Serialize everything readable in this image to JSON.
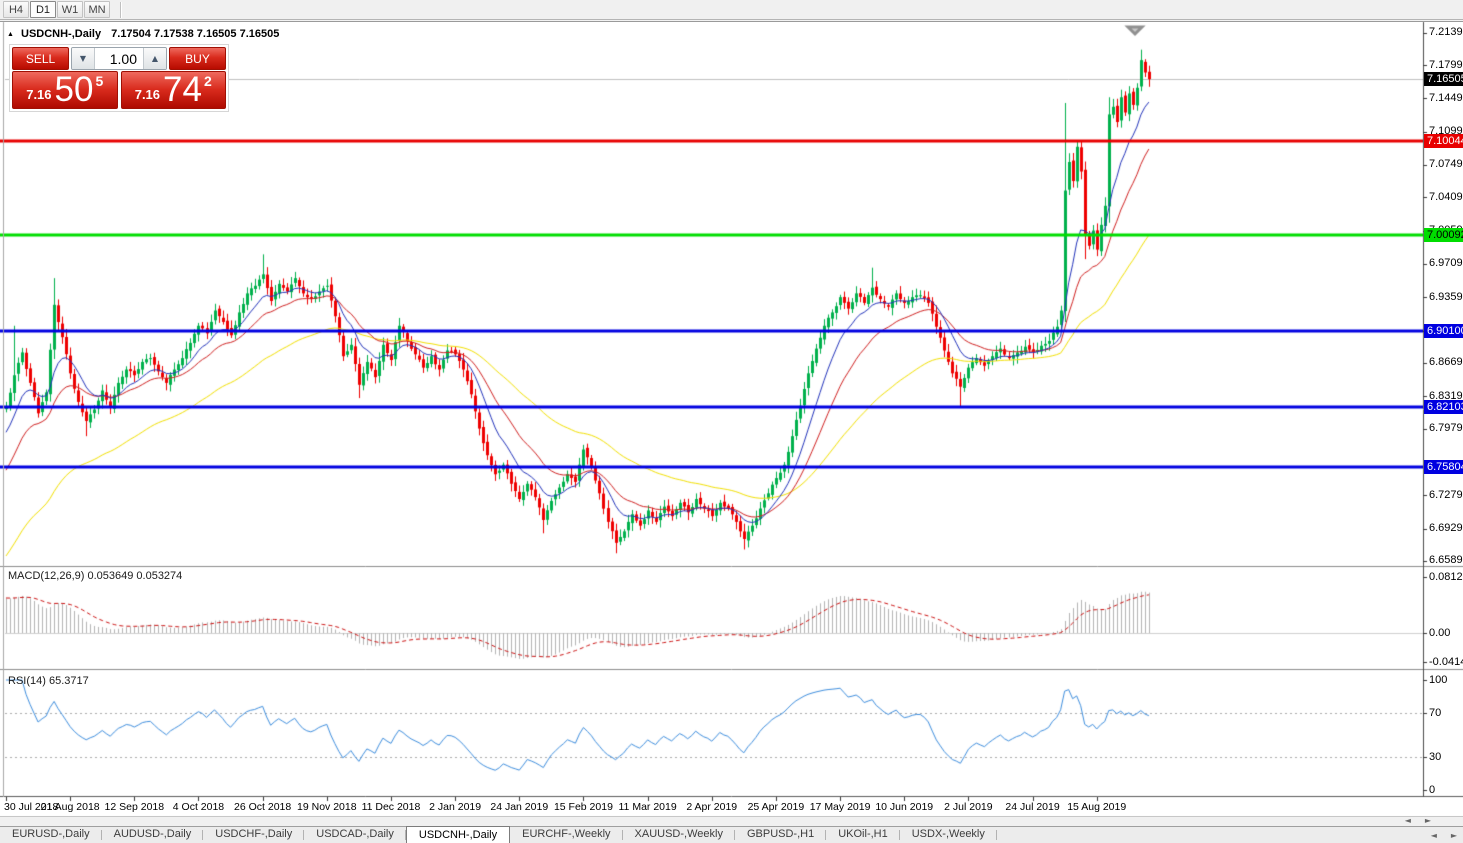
{
  "toolbar": {
    "timeframes": [
      {
        "label": "H4",
        "active": false
      },
      {
        "label": "D1",
        "active": true
      },
      {
        "label": "W1",
        "active": false
      },
      {
        "label": "MN",
        "active": false
      }
    ]
  },
  "header": {
    "collapse_icon": "▲",
    "symbol": "USDCNH-,Daily",
    "ohlc": "7.17504 7.17538 7.16505 7.16505"
  },
  "trade_widget": {
    "sell_label": "SELL",
    "buy_label": "BUY",
    "volume": "1.00",
    "spinner_down_icon": "▼",
    "spinner_up_icon": "▲",
    "sell_quote": {
      "prefix": "7.16",
      "big": "50",
      "sup": "5"
    },
    "buy_quote": {
      "prefix": "7.16",
      "big": "74",
      "sup": "2"
    }
  },
  "indicator_labels": {
    "macd_title": "MACD(12,26,9) 0.053649 0.053274",
    "rsi_title": "RSI(14) 65.3717"
  },
  "scrollbar": {
    "left_arrow": "◄",
    "right_arrow": "►"
  },
  "tabs": [
    {
      "label": "EURUSD-,Daily",
      "active": false
    },
    {
      "label": "AUDUSD-,Daily",
      "active": false
    },
    {
      "label": "USDCHF-,Daily",
      "active": false
    },
    {
      "label": "USDCAD-,Daily",
      "active": false
    },
    {
      "label": "USDCNH-,Daily",
      "active": true
    },
    {
      "label": "EURCHF-,Weekly",
      "active": false
    },
    {
      "label": "XAUUSD-,Weekly",
      "active": false
    },
    {
      "label": "GBPUSD-,H1",
      "active": false
    },
    {
      "label": "UKOil-,H1",
      "active": false
    },
    {
      "label": "USDX-,Weekly",
      "active": false
    }
  ],
  "colors": {
    "candle_up": "#00b14c",
    "candle_down": "#ee0000",
    "ma_fast": "#2233bb",
    "ma_mid": "#d02020",
    "ma_slow": "#f2e000",
    "line_red": "#e80000",
    "line_green": "#00dd00",
    "line_blue": "#0000e0",
    "current_price_line": "#c0c0c0",
    "current_price_box": "#000000",
    "macd_histogram": "#b4b4b4",
    "macd_signal": "#cc1111",
    "rsi_line": "#3e8ede",
    "dashed_level": "#aaaaaa"
  },
  "chart_data": {
    "type": "candlestick",
    "symbol": "USDCNH-",
    "timeframe": "Daily",
    "ohlc_display": {
      "open": "7.17504",
      "high": "7.17538",
      "low": "7.16505",
      "close": "7.16505"
    },
    "visible_bars": 286,
    "warmup_bars": 40,
    "close_waypoints": [
      [
        -40,
        6.5
      ],
      [
        -32,
        6.568
      ],
      [
        -24,
        6.638
      ],
      [
        -16,
        6.712
      ],
      [
        -8,
        6.778
      ],
      [
        -4,
        6.8
      ],
      [
        0,
        6.82
      ],
      [
        2,
        6.854
      ],
      [
        4,
        6.878
      ],
      [
        6,
        6.846
      ],
      [
        8,
        6.814
      ],
      [
        10,
        6.836
      ],
      [
        12,
        6.928
      ],
      [
        14,
        6.894
      ],
      [
        16,
        6.856
      ],
      [
        18,
        6.826
      ],
      [
        20,
        6.806
      ],
      [
        22,
        6.818
      ],
      [
        24,
        6.838
      ],
      [
        26,
        6.82
      ],
      [
        28,
        6.846
      ],
      [
        30,
        6.86
      ],
      [
        32,
        6.854
      ],
      [
        34,
        6.868
      ],
      [
        36,
        6.872
      ],
      [
        38,
        6.858
      ],
      [
        40,
        6.846
      ],
      [
        42,
        6.86
      ],
      [
        44,
        6.872
      ],
      [
        46,
        6.888
      ],
      [
        48,
        6.906
      ],
      [
        50,
        6.898
      ],
      [
        52,
        6.922
      ],
      [
        54,
        6.91
      ],
      [
        56,
        6.896
      ],
      [
        58,
        6.92
      ],
      [
        60,
        6.94
      ],
      [
        62,
        6.948
      ],
      [
        64,
        6.96
      ],
      [
        66,
        6.932
      ],
      [
        68,
        6.95
      ],
      [
        70,
        6.942
      ],
      [
        72,
        6.956
      ],
      [
        74,
        6.94
      ],
      [
        76,
        6.934
      ],
      [
        78,
        6.942
      ],
      [
        80,
        6.948
      ],
      [
        82,
        6.916
      ],
      [
        84,
        6.874
      ],
      [
        86,
        6.886
      ],
      [
        88,
        6.844
      ],
      [
        90,
        6.868
      ],
      [
        92,
        6.852
      ],
      [
        94,
        6.886
      ],
      [
        96,
        6.87
      ],
      [
        98,
        6.906
      ],
      [
        100,
        6.89
      ],
      [
        102,
        6.876
      ],
      [
        104,
        6.862
      ],
      [
        106,
        6.874
      ],
      [
        108,
        6.86
      ],
      [
        110,
        6.88
      ],
      [
        112,
        6.876
      ],
      [
        114,
        6.86
      ],
      [
        116,
        6.834
      ],
      [
        118,
        6.798
      ],
      [
        120,
        6.77
      ],
      [
        122,
        6.75
      ],
      [
        124,
        6.76
      ],
      [
        126,
        6.74
      ],
      [
        128,
        6.724
      ],
      [
        130,
        6.74
      ],
      [
        132,
        6.726
      ],
      [
        134,
        6.702
      ],
      [
        136,
        6.722
      ],
      [
        138,
        6.736
      ],
      [
        140,
        6.75
      ],
      [
        142,
        6.742
      ],
      [
        144,
        6.776
      ],
      [
        146,
        6.758
      ],
      [
        148,
        6.73
      ],
      [
        150,
        6.7
      ],
      [
        152,
        6.678
      ],
      [
        154,
        6.69
      ],
      [
        156,
        6.708
      ],
      [
        158,
        6.696
      ],
      [
        160,
        6.712
      ],
      [
        162,
        6.7
      ],
      [
        164,
        6.716
      ],
      [
        166,
        6.706
      ],
      [
        168,
        6.72
      ],
      [
        170,
        6.71
      ],
      [
        172,
        6.724
      ],
      [
        174,
        6.714
      ],
      [
        176,
        6.706
      ],
      [
        178,
        6.72
      ],
      [
        180,
        6.714
      ],
      [
        182,
        6.7
      ],
      [
        184,
        6.682
      ],
      [
        186,
        6.696
      ],
      [
        188,
        6.714
      ],
      [
        190,
        6.73
      ],
      [
        192,
        6.746
      ],
      [
        194,
        6.76
      ],
      [
        196,
        6.79
      ],
      [
        198,
        6.822
      ],
      [
        200,
        6.856
      ],
      [
        202,
        6.882
      ],
      [
        204,
        6.906
      ],
      [
        206,
        6.92
      ],
      [
        208,
        6.936
      ],
      [
        210,
        6.924
      ],
      [
        212,
        6.94
      ],
      [
        214,
        6.93
      ],
      [
        216,
        6.946
      ],
      [
        218,
        6.934
      ],
      [
        220,
        6.926
      ],
      [
        222,
        6.94
      ],
      [
        224,
        6.93
      ],
      [
        226,
        6.936
      ],
      [
        228,
        6.938
      ],
      [
        230,
        6.93
      ],
      [
        232,
        6.905
      ],
      [
        234,
        6.88
      ],
      [
        236,
        6.856
      ],
      [
        238,
        6.842
      ],
      [
        240,
        6.862
      ],
      [
        242,
        6.872
      ],
      [
        244,
        6.864
      ],
      [
        246,
        6.874
      ],
      [
        248,
        6.882
      ],
      [
        250,
        6.872
      ],
      [
        252,
        6.878
      ],
      [
        254,
        6.884
      ],
      [
        256,
        6.878
      ],
      [
        258,
        6.885
      ],
      [
        260,
        6.89
      ],
      [
        262,
        6.905
      ],
      [
        263,
        6.922
      ],
      [
        264,
        7.048
      ],
      [
        265,
        7.078
      ],
      [
        266,
        7.058
      ],
      [
        267,
        7.094
      ],
      [
        268,
        7.068
      ],
      [
        269,
        7.002
      ],
      [
        270,
        6.99
      ],
      [
        271,
        7.006
      ],
      [
        272,
        6.986
      ],
      [
        273,
        7.012
      ],
      [
        274,
        7.032
      ],
      [
        275,
        7.128
      ],
      [
        276,
        7.136
      ],
      [
        277,
        7.12
      ],
      [
        278,
        7.146
      ],
      [
        279,
        7.13
      ],
      [
        280,
        7.15
      ],
      [
        281,
        7.138
      ],
      [
        282,
        7.156
      ],
      [
        283,
        7.185
      ],
      [
        284,
        7.172
      ],
      [
        285,
        7.16505
      ]
    ],
    "wick_overrides": [
      {
        "bar": 2,
        "high": 6.906
      },
      {
        "bar": 12,
        "high": 6.956
      },
      {
        "bar": 20,
        "low": 6.79
      },
      {
        "bar": 64,
        "high": 6.981
      },
      {
        "bar": 88,
        "low": 6.83
      },
      {
        "bar": 134,
        "low": 6.688
      },
      {
        "bar": 152,
        "low": 6.667
      },
      {
        "bar": 184,
        "low": 6.671
      },
      {
        "bar": 216,
        "high": 6.967
      },
      {
        "bar": 238,
        "low": 6.821
      },
      {
        "bar": 264,
        "high": 7.14,
        "low": 6.91
      },
      {
        "bar": 269,
        "low": 6.976
      },
      {
        "bar": 275,
        "high": 7.146
      },
      {
        "bar": 283,
        "high": 7.196
      }
    ],
    "moving_averages": [
      {
        "type": "EMA",
        "period": 10,
        "color_key": "ma_fast"
      },
      {
        "type": "EMA",
        "period": 21,
        "color_key": "ma_mid"
      },
      {
        "type": "EMA",
        "period": 55,
        "color_key": "ma_slow"
      }
    ],
    "price_levels": [
      {
        "price": 7.10044,
        "label": "7.10044",
        "color": "#e80000",
        "text_color": "#ffffff"
      },
      {
        "price": 7.00092,
        "label": "7.00092",
        "color": "#00dd00",
        "text_color": "#000000"
      },
      {
        "price": 6.901,
        "label": "6.90100",
        "color": "#0000e0",
        "text_color": "#ffffff"
      },
      {
        "price": 6.82103,
        "label": "6.82103",
        "color": "#0000e0",
        "text_color": "#ffffff"
      },
      {
        "price": 6.75804,
        "label": "6.75804",
        "color": "#0000e0",
        "text_color": "#ffffff"
      }
    ],
    "current_price": {
      "value": 7.16505,
      "label": "7.16505"
    },
    "price_axis_ticks": [
      "7.21390",
      "7.17990",
      "7.14490",
      "7.10990",
      "7.07490",
      "7.04090",
      "7.00590",
      "6.97090",
      "6.93590",
      "6.90100",
      "6.86690",
      "6.83190",
      "6.79790",
      "6.72790",
      "6.69290",
      "6.65890"
    ],
    "date_axis": [
      "30 Jul 2018",
      "21 Aug 2018",
      "12 Sep 2018",
      "4 Oct 2018",
      "26 Oct 2018",
      "19 Nov 2018",
      "11 Dec 2018",
      "2 Jan 2019",
      "24 Jan 2019",
      "15 Feb 2019",
      "11 Mar 2019",
      "2 Apr 2019",
      "25 Apr 2019",
      "17 May 2019",
      "10 Jun 2019",
      "2 Jul 2019",
      "24 Jul 2019",
      "15 Aug 2019"
    ],
    "indicators": {
      "macd": {
        "label": "MACD(12,26,9)",
        "fast": 12,
        "slow": 26,
        "signal": 9,
        "value_main": "0.053649",
        "value_signal": "0.053274",
        "axis_top": "0.081265",
        "axis_zero": "0.00",
        "axis_bottom": "-0.041412"
      },
      "rsi": {
        "label": "RSI(14)",
        "period": 14,
        "value": "65.3717",
        "axis": [
          "100",
          "70",
          "30",
          "0"
        ],
        "levels": [
          70,
          30
        ]
      }
    }
  }
}
